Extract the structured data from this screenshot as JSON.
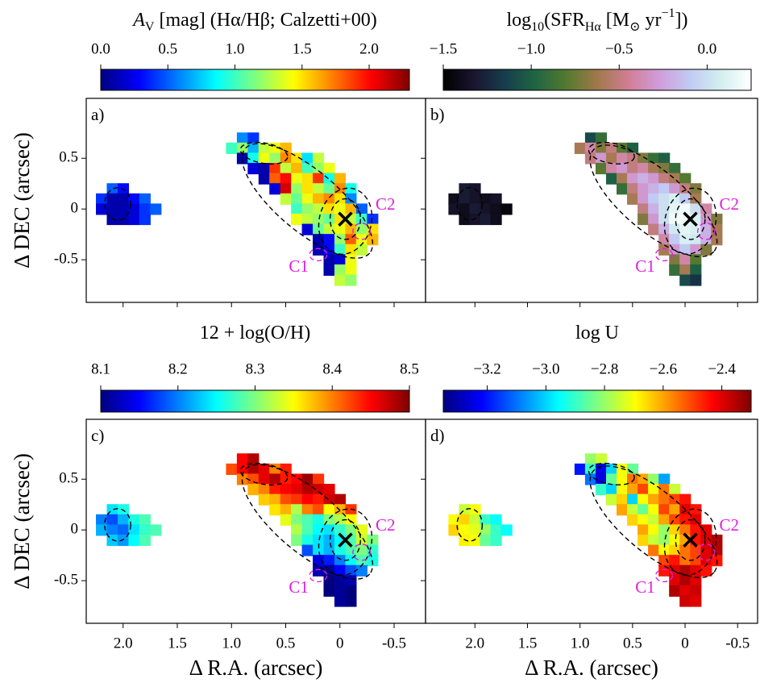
{
  "pixels": [
    {
      "dec": 0.7,
      "ra": [
        0.9,
        0.8
      ]
    },
    {
      "dec": 0.6,
      "ra": [
        1.0,
        0.9,
        0.8,
        0.7,
        0.6,
        0.5
      ]
    },
    {
      "dec": 0.5,
      "ra": [
        0.9,
        0.8,
        0.7,
        0.6,
        0.5,
        0.4,
        0.3,
        0.2
      ]
    },
    {
      "dec": 0.4,
      "ra": [
        0.8,
        0.7,
        0.6,
        0.5,
        0.4,
        0.3,
        0.2,
        0.1
      ]
    },
    {
      "dec": 0.3,
      "ra": [
        0.7,
        0.6,
        0.5,
        0.4,
        0.3,
        0.2,
        0.1,
        0.0
      ]
    },
    {
      "dec": 0.2,
      "ra": [
        0.6,
        0.5,
        0.4,
        0.3,
        0.2,
        0.1,
        0.0,
        -0.1
      ]
    },
    {
      "dec": 0.1,
      "ra": [
        0.5,
        0.4,
        0.3,
        0.2,
        0.1,
        0.0,
        -0.1
      ]
    },
    {
      "dec": 0.0,
      "ra": [
        0.4,
        0.3,
        0.2,
        0.1,
        0.0,
        -0.1,
        -0.2
      ]
    },
    {
      "dec": -0.1,
      "ra": [
        0.4,
        0.3,
        0.2,
        0.1,
        0.0,
        -0.1,
        -0.2,
        -0.3
      ]
    },
    {
      "dec": -0.2,
      "ra": [
        0.3,
        0.2,
        0.1,
        0.0,
        -0.1,
        -0.2,
        -0.3
      ]
    },
    {
      "dec": -0.3,
      "ra": [
        0.2,
        0.1,
        0.0,
        -0.1,
        -0.2,
        -0.3
      ]
    },
    {
      "dec": -0.4,
      "ra": [
        0.2,
        0.1,
        0.0,
        -0.1,
        -0.2
      ]
    },
    {
      "dec": -0.5,
      "ra": [
        0.1,
        0.0,
        -0.1
      ]
    },
    {
      "dec": -0.6,
      "ra": [
        0.1,
        0.0,
        -0.1
      ]
    },
    {
      "dec": -0.7,
      "ra": [
        0.0,
        -0.1
      ]
    },
    {
      "dec": 0.2,
      "ra": [
        2.1,
        2.0
      ]
    },
    {
      "dec": 0.1,
      "ra": [
        2.2,
        2.1,
        2.0,
        1.9,
        1.8
      ]
    },
    {
      "dec": 0.0,
      "ra": [
        2.2,
        2.1,
        2.0,
        1.9,
        1.8,
        1.7
      ]
    },
    {
      "dec": -0.1,
      "ra": [
        2.1,
        2.0,
        1.9,
        1.8
      ]
    }
  ],
  "contours": [
    {
      "ra": -0.05,
      "dec": -0.1,
      "rx": 0.14,
      "ry": 0.2,
      "angle": 0,
      "color": "#000000"
    },
    {
      "ra": -0.05,
      "dec": -0.12,
      "rx": 0.24,
      "ry": 0.33,
      "angle": 15,
      "color": "#000000"
    },
    {
      "ra": 0.3,
      "dec": 0.08,
      "rx": 0.75,
      "ry": 0.3,
      "angle": 40,
      "color": "#000000"
    },
    {
      "ra": 0.7,
      "dec": 0.55,
      "rx": 0.22,
      "ry": 0.1,
      "angle": 10,
      "color": "#000000"
    },
    {
      "ra": 2.05,
      "dec": 0.05,
      "rx": 0.12,
      "ry": 0.16,
      "angle": 0,
      "color": "#000000"
    },
    {
      "ra": -0.2,
      "dec": -0.22,
      "rx": 0.08,
      "ry": 0.08,
      "angle": 0,
      "color": "#e020e0"
    },
    {
      "ra": 0.2,
      "dec": -0.45,
      "rx": 0.08,
      "ry": 0.06,
      "angle": 0,
      "color": "#e020e0"
    }
  ],
  "nucleus": {
    "ra": -0.05,
    "dec": -0.1
  },
  "annotations": [
    {
      "text": "C1",
      "ra": 0.38,
      "dec": -0.58
    },
    {
      "text": "C2",
      "ra": -0.42,
      "dec": 0.03
    }
  ],
  "chart_data": [
    {
      "type": "heatmap",
      "panel_label": "a)",
      "cbar_label": [
        {
          "text": "A"
        },
        {
          "text": "V",
          "sub": true
        },
        {
          "text": " [mag] (Hα/Hβ; Calzetti+00)"
        }
      ],
      "clim": [
        0,
        2.3
      ],
      "cbar_ticks": [
        {
          "value": 0,
          "label": "0.0"
        },
        0.5,
        {
          "value": 1,
          "label": "1.0"
        },
        1.5,
        {
          "value": 2,
          "label": "2.0"
        }
      ],
      "colormap": [
        "#00007f",
        "#0000ff",
        "#007fff",
        "#00ffff",
        "#7fff7f",
        "#ffff00",
        "#ff7f00",
        "#ff0000",
        "#7f0000"
      ],
      "xlim": [
        2.34,
        -0.79
      ],
      "ylim": [
        -0.92,
        1.09
      ],
      "xticks": [
        {
          "value": 2,
          "label": "2.0"
        },
        1.5,
        {
          "value": 1,
          "label": "1.0"
        },
        0.5,
        0,
        -0.5
      ],
      "yticks": [
        0.5,
        0,
        -0.5
      ],
      "xticklabels": false,
      "yticklabels": true,
      "ylabel": "Δ DEC (arcsec)",
      "values": [
        [
          0.6,
          0.4
        ],
        [
          1.0,
          1.2,
          0.7,
          1.3,
          1.4,
          1.6
        ],
        [
          0.1,
          0.9,
          1.4,
          1.2,
          1.7,
          1.5,
          0.8,
          1.3
        ],
        [
          0.2,
          0.1,
          1.9,
          1.3,
          1.6,
          1.0,
          1.2,
          1.4
        ],
        [
          0.1,
          1.8,
          2.0,
          1.4,
          1.5,
          1.9,
          0.9,
          1.6
        ],
        [
          0.2,
          2.1,
          1.2,
          1.5,
          1.3,
          1.1,
          1.7,
          0.9
        ],
        [
          1.3,
          1.1,
          1.4,
          1.6,
          1.7,
          1.5,
          0.6
        ],
        [
          1.0,
          1.2,
          1.3,
          1.5,
          1.4,
          1.6,
          0.5
        ],
        [
          1.4,
          1.3,
          1.2,
          1.1,
          1.5,
          1.3,
          1.0,
          0.4
        ],
        [
          0.2,
          1.1,
          1.3,
          1.4,
          1.6,
          1.2,
          1.5
        ],
        [
          0.1,
          0.3,
          1.2,
          1.8,
          1.4,
          1.6
        ],
        [
          0.1,
          0.3,
          1.0,
          1.5,
          1.3
        ],
        [
          0.1,
          0.2,
          1.4
        ],
        [
          0.1,
          1.2,
          1.4
        ],
        [
          1.3,
          1.2
        ],
        [
          0.5,
          0.3
        ],
        [
          0.4,
          0.1,
          0.1,
          0.3,
          0.5
        ],
        [
          0.2,
          0.1,
          0.1,
          0.2,
          0.4,
          0.5
        ],
        [
          0.1,
          0.1,
          0.2,
          0.4
        ]
      ]
    },
    {
      "type": "heatmap",
      "panel_label": "b)",
      "cbar_label": [
        {
          "text": "log"
        },
        {
          "text": "10",
          "sub": true
        },
        {
          "text": "(SFR"
        },
        {
          "text": "Hα",
          "sub": true
        },
        {
          "text": " [M"
        },
        {
          "text": "⊙",
          "sub": true
        },
        {
          "text": " yr"
        },
        {
          "text": "−1",
          "sup": true
        },
        {
          "text": "])"
        }
      ],
      "clim": [
        -1.5,
        0.25
      ],
      "cbar_ticks": [
        {
          "value": -1.5,
          "label": "−1.5"
        },
        {
          "value": -1,
          "label": "−1.0"
        },
        {
          "value": -0.5,
          "label": "−0.5"
        },
        {
          "value": 0,
          "label": "0.0"
        }
      ],
      "colormap": [
        "#000000",
        "#1a1530",
        "#163d4e",
        "#1f6642",
        "#54792f",
        "#a07949",
        "#d07e93",
        "#cf9cda",
        "#c1caf3",
        "#d2eeef",
        "#ffffff"
      ],
      "xlim": [
        2.47,
        -0.69
      ],
      "ylim": [
        -0.92,
        1.09
      ],
      "xticks": [
        {
          "value": 2,
          "label": "2.0"
        },
        1.5,
        {
          "value": 1,
          "label": "1.0"
        },
        0.5,
        0,
        -0.5
      ],
      "yticks": [
        0.5,
        0,
        -0.5
      ],
      "xticklabels": false,
      "yticklabels": false,
      "values": [
        [
          -1.1,
          -0.9
        ],
        [
          -0.6,
          -0.4,
          -0.7,
          -0.5,
          -0.8,
          -1.0
        ],
        [
          -0.5,
          -0.3,
          -0.6,
          -0.4,
          -0.5,
          -0.7,
          -0.9,
          -1.0
        ],
        [
          -0.8,
          -0.4,
          -0.3,
          -0.5,
          -0.4,
          -0.6,
          -0.7,
          -0.9
        ],
        [
          -1.0,
          -0.6,
          -0.3,
          -0.2,
          -0.3,
          -0.5,
          -0.6,
          -0.8
        ],
        [
          -0.9,
          -0.5,
          -0.3,
          -0.2,
          -0.1,
          -0.3,
          -0.5,
          -0.7
        ],
        [
          -0.6,
          -0.3,
          -0.1,
          0.0,
          0.1,
          -0.1,
          -0.6
        ],
        [
          -0.5,
          -0.2,
          0.0,
          0.15,
          0.2,
          0.0,
          -0.4
        ],
        [
          -0.7,
          -0.3,
          0.0,
          0.2,
          0.2,
          0.1,
          -0.3,
          -0.7
        ],
        [
          -0.5,
          -0.2,
          0.05,
          0.15,
          0.1,
          -0.2,
          -0.6
        ],
        [
          -0.4,
          -0.1,
          0.1,
          0.05,
          -0.2,
          -0.6
        ],
        [
          -0.6,
          -0.3,
          -0.1,
          -0.3,
          -0.7
        ],
        [
          -0.7,
          -0.4,
          -0.8
        ],
        [
          -0.9,
          -0.6,
          -1.0
        ],
        [
          -1.1,
          -1.2
        ],
        [
          -1.3,
          -1.35
        ],
        [
          -1.4,
          -1.3,
          -1.35,
          -1.4,
          -1.35
        ],
        [
          -1.35,
          -1.4,
          -1.3,
          -1.35,
          -1.4,
          -1.45
        ],
        [
          -1.4,
          -1.35,
          -1.3,
          -1.4
        ]
      ]
    },
    {
      "type": "heatmap",
      "panel_label": "c)",
      "cbar_label": [
        {
          "text": "12 + log(O/H)"
        }
      ],
      "clim": [
        8.1,
        8.5
      ],
      "cbar_ticks": [
        8.1,
        8.2,
        8.3,
        8.4,
        8.5
      ],
      "colormap": [
        "#00007f",
        "#0000ff",
        "#007fff",
        "#00ffff",
        "#7fff7f",
        "#ffff00",
        "#ff7f00",
        "#ff0000",
        "#7f0000"
      ],
      "xlim": [
        2.34,
        -0.79
      ],
      "ylim": [
        -0.92,
        1.09
      ],
      "xticks": [
        {
          "value": 2,
          "label": "2.0"
        },
        1.5,
        {
          "value": 1,
          "label": "1.0"
        },
        0.5,
        0,
        -0.5
      ],
      "yticks": [
        0.5,
        0,
        -0.5
      ],
      "xticklabels": true,
      "yticklabels": true,
      "xlabel": "Δ R.A. (arcsec)",
      "ylabel": "Δ DEC (arcsec)",
      "values": [
        [
          8.45,
          8.48
        ],
        [
          8.42,
          8.45,
          8.48,
          8.46,
          8.4,
          8.44
        ],
        [
          8.4,
          8.42,
          8.46,
          8.48,
          8.44,
          8.45,
          8.49,
          8.43
        ],
        [
          8.38,
          8.4,
          8.44,
          8.45,
          8.46,
          8.48,
          8.47,
          8.46
        ],
        [
          8.37,
          8.38,
          8.42,
          8.43,
          8.45,
          8.44,
          8.47,
          8.48
        ],
        [
          8.36,
          8.38,
          8.32,
          8.4,
          8.42,
          8.35,
          8.38,
          8.43
        ],
        [
          8.34,
          8.3,
          8.28,
          8.26,
          8.3,
          8.32,
          8.35
        ],
        [
          8.32,
          8.28,
          8.25,
          8.24,
          8.27,
          8.3,
          8.34
        ],
        [
          8.3,
          8.26,
          8.24,
          8.22,
          8.25,
          8.28,
          8.33,
          8.3
        ],
        [
          8.18,
          8.24,
          8.22,
          8.26,
          8.28,
          8.3,
          8.27
        ],
        [
          8.14,
          8.16,
          8.2,
          8.25,
          8.28,
          8.26
        ],
        [
          8.12,
          8.11,
          8.15,
          8.18,
          8.2
        ],
        [
          8.1,
          8.11,
          8.12
        ],
        [
          8.1,
          8.11,
          8.1
        ],
        [
          8.11,
          8.1
        ],
        [
          8.24,
          8.26
        ],
        [
          8.2,
          8.18,
          8.22,
          8.26,
          8.28
        ],
        [
          8.22,
          8.2,
          8.19,
          8.24,
          8.27,
          8.28
        ],
        [
          8.23,
          8.21,
          8.25,
          8.28
        ]
      ]
    },
    {
      "type": "heatmap",
      "panel_label": "d)",
      "cbar_label": [
        {
          "text": "log U"
        }
      ],
      "clim": [
        -3.35,
        -2.3
      ],
      "cbar_ticks": [
        {
          "value": -3.2,
          "label": "−3.2"
        },
        {
          "value": -3,
          "label": "−3.0"
        },
        {
          "value": -2.8,
          "label": "−2.8"
        },
        {
          "value": -2.6,
          "label": "−2.6"
        },
        {
          "value": -2.4,
          "label": "−2.4"
        }
      ],
      "colormap": [
        "#00007f",
        "#0000ff",
        "#007fff",
        "#00ffff",
        "#7fff7f",
        "#ffff00",
        "#ff7f00",
        "#ff0000",
        "#7f0000"
      ],
      "xlim": [
        2.47,
        -0.69
      ],
      "ylim": [
        -0.92,
        1.09
      ],
      "xticks": [
        {
          "value": 2,
          "label": "2.0"
        },
        1.5,
        {
          "value": 1,
          "label": "1.0"
        },
        0.5,
        0,
        -0.5
      ],
      "yticks": [
        0.5,
        0,
        -0.5
      ],
      "xticklabels": true,
      "yticklabels": false,
      "xlabel": "Δ R.A. (arcsec)",
      "values": [
        [
          -2.8,
          -2.75
        ],
        [
          -3.2,
          -2.9,
          -3.25,
          -3.0,
          -2.7,
          -2.85
        ],
        [
          -3.1,
          -3.25,
          -2.85,
          -2.7,
          -2.55,
          -2.6,
          -2.8,
          -3.05
        ],
        [
          -2.9,
          -3.0,
          -2.7,
          -2.6,
          -2.5,
          -2.7,
          -2.55,
          -2.75
        ],
        [
          -2.75,
          -2.65,
          -3.0,
          -2.7,
          -2.6,
          -2.55,
          -2.5,
          -2.45
        ],
        [
          -2.6,
          -2.75,
          -2.85,
          -2.7,
          -2.5,
          -2.6,
          -2.4,
          -2.45
        ],
        [
          -2.65,
          -2.7,
          -2.75,
          -2.6,
          -2.5,
          -2.45,
          -2.4
        ],
        [
          -2.6,
          -2.7,
          -2.8,
          -2.65,
          -2.55,
          -2.45,
          -2.4
        ],
        [
          -2.65,
          -2.75,
          -2.8,
          -2.7,
          -2.6,
          -2.45,
          -2.4,
          -2.35
        ],
        [
          -2.55,
          -2.7,
          -2.65,
          -2.55,
          -2.5,
          -2.4,
          -2.35
        ],
        [
          -2.5,
          -2.45,
          -2.55,
          -2.5,
          -2.4,
          -2.45
        ],
        [
          -2.45,
          -2.4,
          -2.35,
          -2.4,
          -2.45
        ],
        [
          -2.4,
          -2.35,
          -2.4
        ],
        [
          -2.35,
          -2.4,
          -2.38
        ],
        [
          -2.38,
          -2.4
        ],
        [
          -2.75,
          -2.7
        ],
        [
          -2.7,
          -2.65,
          -2.75,
          -2.9,
          -2.95
        ],
        [
          -2.65,
          -2.7,
          -2.72,
          -2.8,
          -2.9,
          -2.95
        ],
        [
          -2.68,
          -2.7,
          -2.85,
          -2.9
        ]
      ]
    }
  ]
}
